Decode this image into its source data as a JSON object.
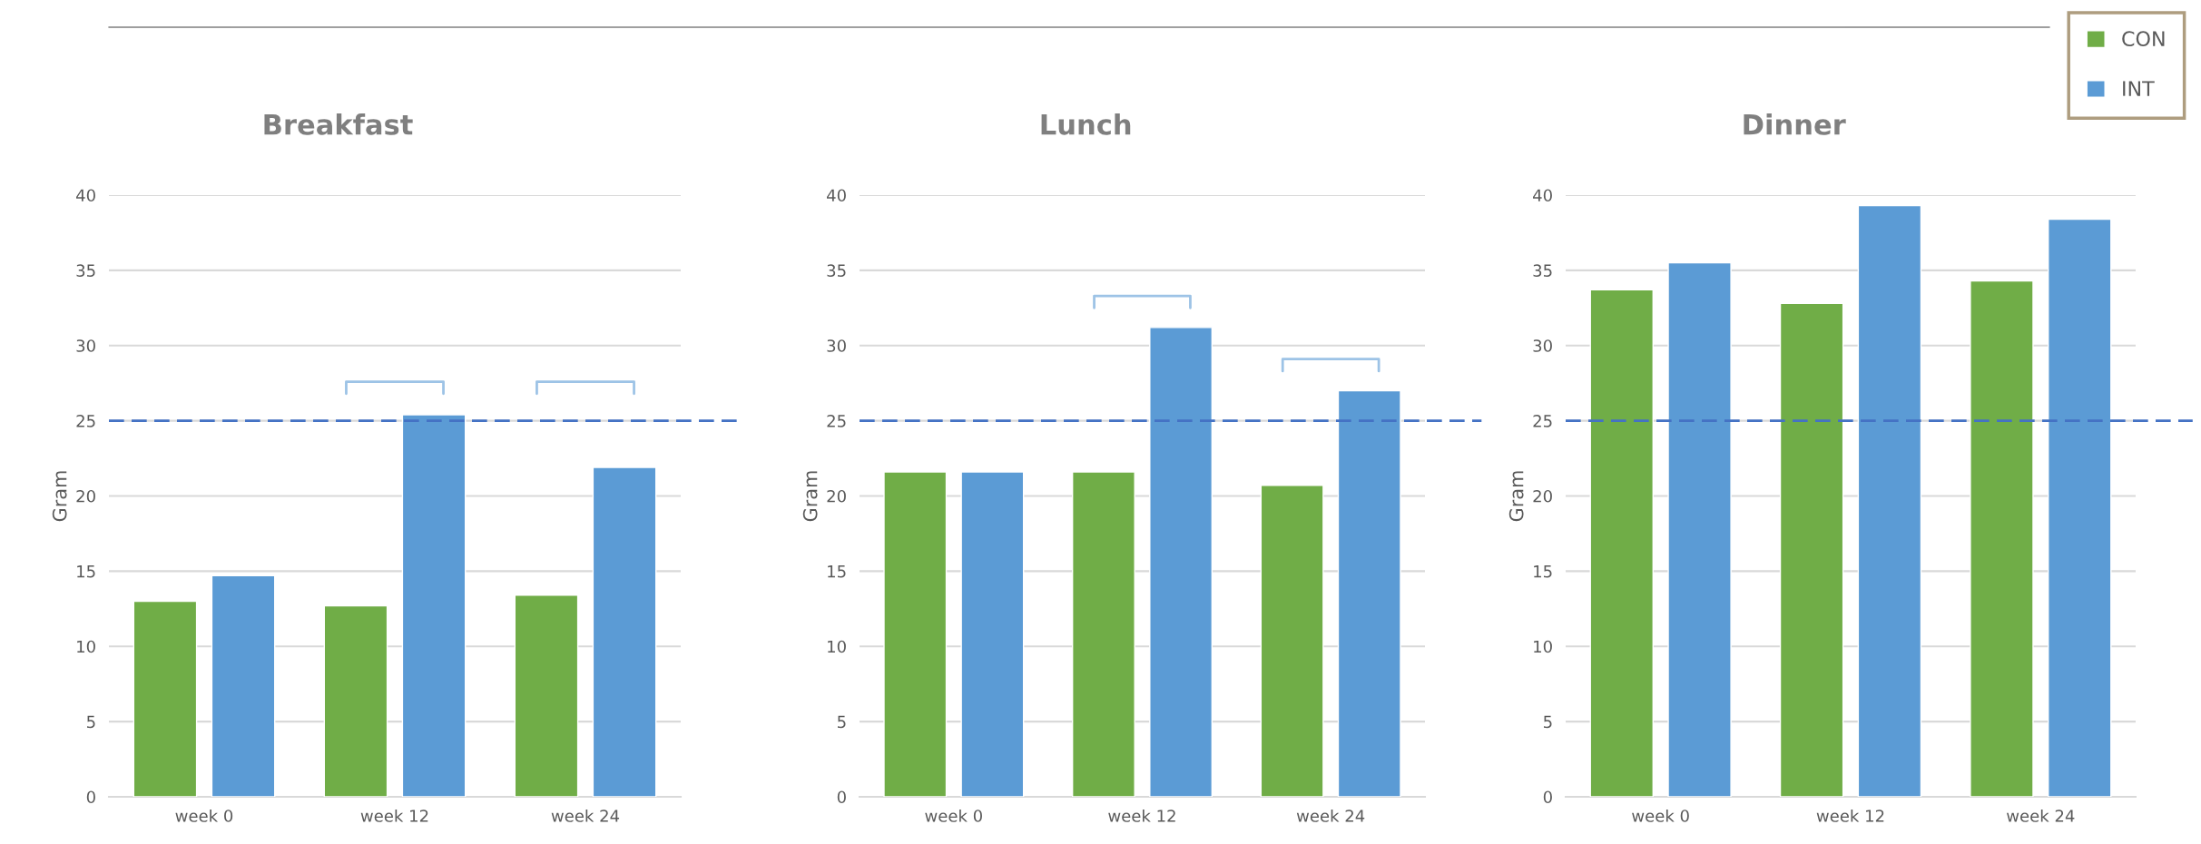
{
  "chart_data": [
    {
      "type": "bar",
      "title": "Breakfast",
      "ylabel": "Gram",
      "categories": [
        "week 0",
        "week 12",
        "week 24"
      ],
      "series": [
        {
          "color": "#70ad47",
          "values": [
            13.0,
            12.7,
            13.4
          ]
        },
        {
          "color": "#5b9bd5",
          "values": [
            14.7,
            25.4,
            21.9
          ]
        }
      ],
      "ylim": [
        0,
        40
      ],
      "yticks": [
        0,
        5,
        10,
        15,
        20,
        25,
        30,
        35,
        40
      ],
      "grid": "y",
      "legend": false,
      "ref_lines": [
        {
          "axis": "y",
          "value": 25,
          "color": "#4472c4",
          "line_style": "dashed"
        }
      ]
    },
    {
      "type": "bar",
      "title": "Lunch",
      "ylabel": "Gram",
      "categories": [
        "week 0",
        "week 12",
        "week 24"
      ],
      "series": [
        {
          "color": "#70ad47",
          "values": [
            21.6,
            21.6,
            20.7
          ]
        },
        {
          "color": "#5b9bd5",
          "values": [
            21.6,
            31.2,
            27.0
          ]
        }
      ],
      "ylim": [
        0,
        40
      ],
      "yticks": [
        0,
        5,
        10,
        15,
        20,
        25,
        30,
        35,
        40
      ],
      "grid": "y",
      "legend": false,
      "ref_lines": [
        {
          "axis": "y",
          "value": 25,
          "color": "#4472c4",
          "line_style": "dashed"
        }
      ]
    },
    {
      "type": "bar",
      "title": "Dinner",
      "ylabel": "Gram",
      "categories": [
        "week 0",
        "week 12",
        "week 24"
      ],
      "series": [
        {
          "name": "CON",
          "color": "#70ad47",
          "values": [
            33.7,
            32.8,
            34.3
          ]
        },
        {
          "name": "INT",
          "color": "#5b9bd5",
          "values": [
            35.5,
            39.3,
            38.4
          ]
        }
      ],
      "ylim": [
        0,
        40
      ],
      "yticks": [
        0,
        5,
        10,
        15,
        20,
        25,
        30,
        35,
        40
      ],
      "grid": "y",
      "legend": "top right",
      "ref_lines": [
        {
          "axis": "y",
          "value": 25,
          "color": "#4472c4",
          "line_style": "dashed"
        }
      ]
    }
  ]
}
